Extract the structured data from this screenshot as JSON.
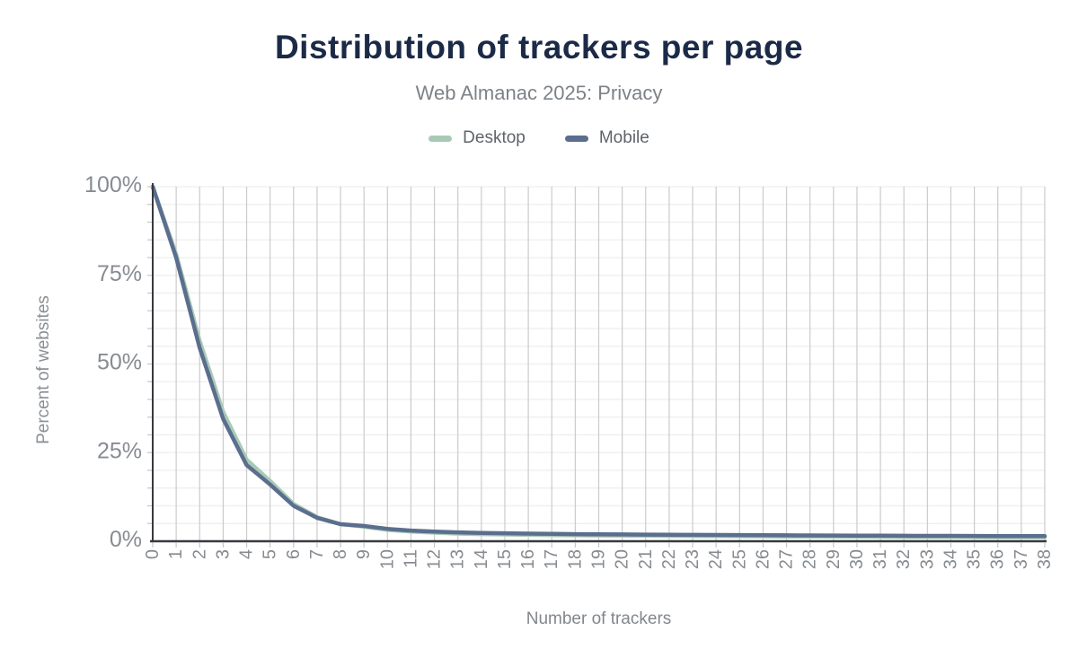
{
  "header": {
    "title": "Distribution of trackers per page",
    "subtitle": "Web Almanac 2025: Privacy"
  },
  "legend": {
    "items": [
      {
        "label": "Desktop",
        "color": "#a7cab6"
      },
      {
        "label": "Mobile",
        "color": "#5b6e8e"
      }
    ]
  },
  "axes": {
    "x_title": "Number of trackers",
    "y_title": "Percent of websites"
  },
  "chart_data": {
    "type": "line",
    "title": "Distribution of trackers per page",
    "subtitle": "Web Almanac 2025: Privacy",
    "xlabel": "Number of trackers",
    "ylabel": "Percent of websites",
    "x": [
      0,
      1,
      2,
      3,
      4,
      5,
      6,
      7,
      8,
      9,
      10,
      11,
      12,
      13,
      14,
      15,
      16,
      17,
      18,
      19,
      20,
      21,
      22,
      23,
      24,
      25,
      26,
      27,
      28,
      29,
      30,
      31,
      32,
      33,
      34,
      35,
      36,
      37,
      38
    ],
    "series": [
      {
        "name": "Desktop",
        "color": "#a7cab6",
        "values": [
          100,
          81,
          56.5,
          36.5,
          23,
          17,
          10.5,
          6.8,
          4.8,
          4.1,
          3.2,
          2.7,
          2.4,
          2.15,
          2.0,
          1.9,
          1.8,
          1.73,
          1.67,
          1.62,
          1.58,
          1.54,
          1.5,
          1.47,
          1.44,
          1.41,
          1.38,
          1.35,
          1.32,
          1.3,
          1.27,
          1.25,
          1.22,
          1.2,
          1.18,
          1.16,
          1.15,
          1.14,
          1.13
        ]
      },
      {
        "name": "Mobile",
        "color": "#5b6e8e",
        "values": [
          100,
          80,
          54.5,
          34.5,
          21.5,
          16,
          10,
          6.6,
          4.8,
          4.3,
          3.5,
          3.0,
          2.7,
          2.5,
          2.35,
          2.25,
          2.15,
          2.08,
          2.0,
          1.97,
          1.93,
          1.88,
          1.84,
          1.8,
          1.77,
          1.74,
          1.71,
          1.68,
          1.65,
          1.62,
          1.6,
          1.57,
          1.55,
          1.53,
          1.51,
          1.49,
          1.47,
          1.46,
          1.45
        ]
      }
    ],
    "ylim": [
      0,
      100
    ],
    "y_ticks": [
      {
        "value": 0,
        "label": "0%"
      },
      {
        "value": 25,
        "label": "25%"
      },
      {
        "value": 50,
        "label": "50%"
      },
      {
        "value": 75,
        "label": "75%"
      },
      {
        "value": 100,
        "label": "100%"
      }
    ],
    "y_minor_step": 5,
    "grid": {
      "vertical": true,
      "horizontal_minor": true
    },
    "legend_position": "top"
  },
  "style": {
    "title_color": "#1b2a47",
    "subtitle_color": "#7d8287",
    "tick_label_color": "#878c92",
    "axis_title_color": "#82878c",
    "vertical_grid_color": "#cbcbcb",
    "horizontal_grid_color": "#f0f0f0",
    "axis_line_color": "#36393d",
    "tick_mark_color": "#c6c6c6",
    "background_color": "#ffffff"
  }
}
